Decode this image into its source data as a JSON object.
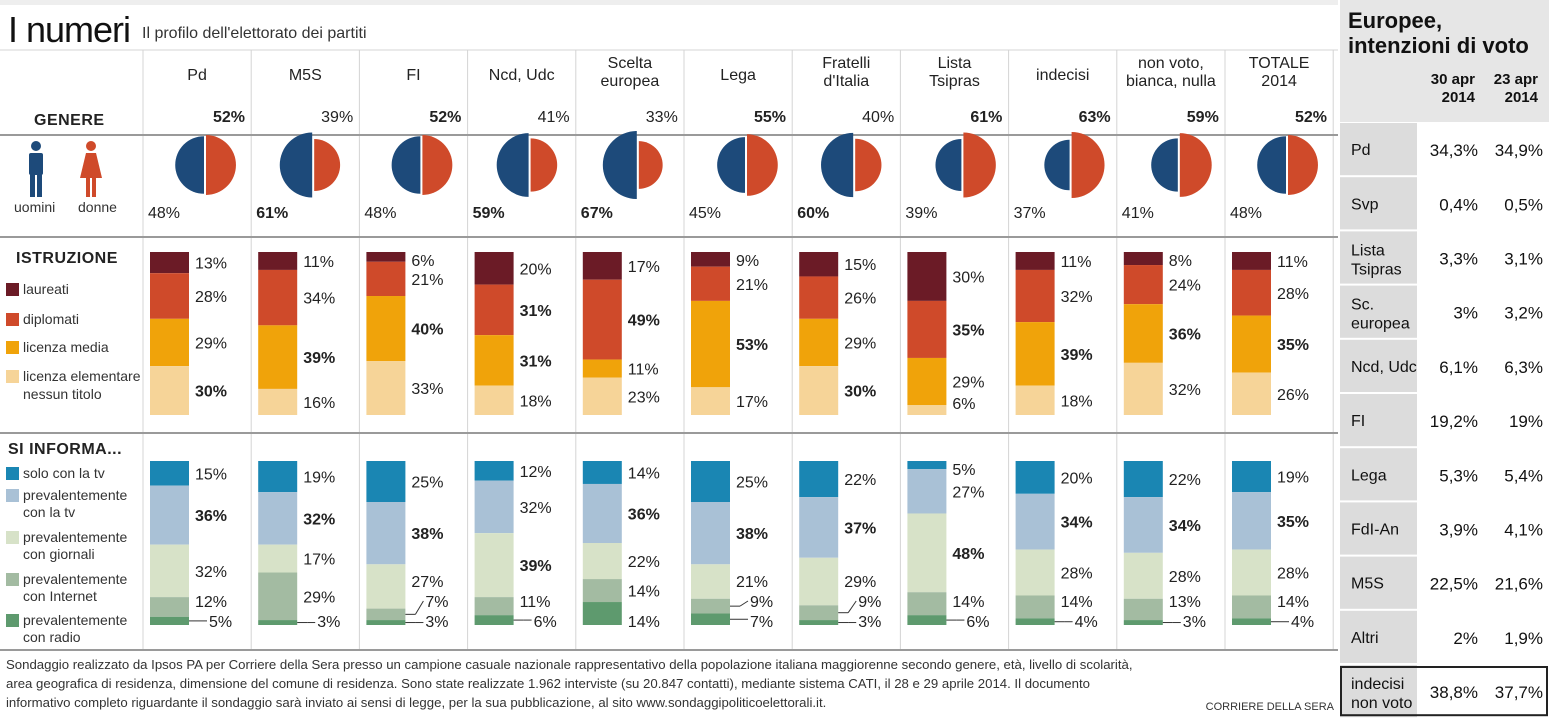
{
  "header": {
    "title": "I numeri",
    "subtitle": "Il profilo dell'elettorato dei partiti"
  },
  "colors": {
    "uomini": "#1d4a7a",
    "donne": "#cf4a2a",
    "laureati": "#6b1b26",
    "diplomati": "#cf4a2a",
    "licenza_media": "#f0a30a",
    "licenza_elementare": "#f6d498",
    "solo_tv": "#1a86b3",
    "prev_tv": "#a9c1d6",
    "prev_giornali": "#d7e2c8",
    "prev_internet": "#a3bba2",
    "prev_radio": "#5e9a6e",
    "grid": "#d4d4d4",
    "row_shade": "#efefef"
  },
  "sections": {
    "genere": {
      "title": "GENERE",
      "legend": [
        "uomini",
        "donne"
      ]
    },
    "istruzione": {
      "title": "ISTRUZIONE",
      "legend": [
        "laureati",
        "diplomati",
        "licenza media",
        "licenza elementare nessun titolo"
      ]
    },
    "informa": {
      "title": "SI INFORMA...",
      "legend": [
        "solo con la tv",
        "prevalentemente con la tv",
        "prevalentemente con giornali",
        "prevalentemente con Internet",
        "prevalentemente con radio"
      ]
    }
  },
  "chart_data": {
    "type": "table",
    "columns": [
      {
        "name": "Pd",
        "genere": {
          "uomini": "48%",
          "donne": "52%"
        },
        "istruzione": [
          "13%",
          "28%",
          "29%",
          "30%"
        ],
        "informa": [
          "15%",
          "36%",
          "32%",
          "12%",
          "5%"
        ]
      },
      {
        "name": "M5S",
        "genere": {
          "uomini": "61%",
          "donne": "39%"
        },
        "istruzione": [
          "11%",
          "34%",
          "39%",
          "16%"
        ],
        "informa": [
          "19%",
          "32%",
          "17%",
          "29%",
          "3%"
        ]
      },
      {
        "name": "FI",
        "genere": {
          "uomini": "48%",
          "donne": "52%"
        },
        "istruzione": [
          "6%",
          "21%",
          "40%",
          "33%"
        ],
        "informa": [
          "25%",
          "38%",
          "27%",
          "7%",
          "3%"
        ]
      },
      {
        "name": "Ncd, Udc",
        "genere": {
          "uomini": "59%",
          "donne": "41%"
        },
        "istruzione": [
          "20%",
          "31%",
          "31%",
          "18%"
        ],
        "informa": [
          "12%",
          "32%",
          "39%",
          "11%",
          "6%"
        ]
      },
      {
        "name": "Scelta europea",
        "genere": {
          "uomini": "67%",
          "donne": "33%"
        },
        "istruzione": [
          "17%",
          "49%",
          "11%",
          "23%"
        ],
        "informa": [
          "14%",
          "36%",
          "22%",
          "14%",
          "14%"
        ]
      },
      {
        "name": "Lega",
        "genere": {
          "uomini": "45%",
          "donne": "55%"
        },
        "istruzione": [
          "9%",
          "21%",
          "53%",
          "17%"
        ],
        "informa": [
          "25%",
          "38%",
          "21%",
          "9%",
          "7%"
        ]
      },
      {
        "name": "Fratelli d'Italia",
        "genere": {
          "uomini": "60%",
          "donne": "40%"
        },
        "istruzione": [
          "15%",
          "26%",
          "29%",
          "30%"
        ],
        "informa": [
          "22%",
          "37%",
          "29%",
          "9%",
          "3%"
        ]
      },
      {
        "name": "Lista Tsipras",
        "genere": {
          "uomini": "39%",
          "donne": "61%"
        },
        "istruzione": [
          "30%",
          "35%",
          "29%",
          "6%"
        ],
        "informa": [
          "5%",
          "27%",
          "48%",
          "14%",
          "6%"
        ]
      },
      {
        "name": "indecisi",
        "genere": {
          "uomini": "37%",
          "donne": "63%"
        },
        "istruzione": [
          "11%",
          "32%",
          "39%",
          "18%"
        ],
        "informa": [
          "20%",
          "34%",
          "28%",
          "14%",
          "4%"
        ]
      },
      {
        "name": "non voto, bianca, nulla",
        "genere": {
          "uomini": "41%",
          "donne": "59%"
        },
        "istruzione": [
          "8%",
          "24%",
          "36%",
          "32%"
        ],
        "informa": [
          "22%",
          "34%",
          "28%",
          "13%",
          "3%"
        ]
      },
      {
        "name": "TOTALE 2014",
        "genere": {
          "uomini": "48%",
          "donne": "52%"
        },
        "istruzione": [
          "11%",
          "28%",
          "35%",
          "26%"
        ],
        "informa": [
          "19%",
          "35%",
          "28%",
          "14%",
          "4%"
        ]
      }
    ]
  },
  "footer": {
    "note": "Sondaggio realizzato da Ipsos PA per Corriere della Sera presso un campione casuale nazionale rappresentativo della popolazione italiana maggiorenne secondo genere, età, livello di scolarità, area geografica di residenza, dimensione del comune di residenza. Sono state realizzate 1.962 interviste (su 20.847 contatti), mediante sistema CATI, il 28 e 29 aprile 2014. Il documento informativo completo riguardante il sondaggio sarà inviato ai sensi di legge, per la sua pubblicazione, al sito www.sondaggipoliticoelettorali.it.",
    "credit": "CORRIERE DELLA SERA"
  },
  "side": {
    "title": "Europee, intenzioni di voto",
    "col1": "30 apr 2014",
    "col2": "23 apr 2014",
    "rows": [
      {
        "party": "Pd",
        "v1": "34,3%",
        "v2": "34,9%"
      },
      {
        "party": "Svp",
        "v1": "0,4%",
        "v2": "0,5%"
      },
      {
        "party": "Lista Tsipras",
        "v1": "3,3%",
        "v2": "3,1%"
      },
      {
        "party": "Sc. europea",
        "v1": "3%",
        "v2": "3,2%"
      },
      {
        "party": "Ncd, Udc",
        "v1": "6,1%",
        "v2": "6,3%"
      },
      {
        "party": "FI",
        "v1": "19,2%",
        "v2": "19%"
      },
      {
        "party": "Lega",
        "v1": "5,3%",
        "v2": "5,4%"
      },
      {
        "party": "FdI-An",
        "v1": "3,9%",
        "v2": "4,1%"
      },
      {
        "party": "M5S",
        "v1": "22,5%",
        "v2": "21,6%"
      },
      {
        "party": "Altri",
        "v1": "2%",
        "v2": "1,9%"
      },
      {
        "party": "indecisi non voto",
        "v1": "38,8%",
        "v2": "37,7%"
      }
    ]
  }
}
